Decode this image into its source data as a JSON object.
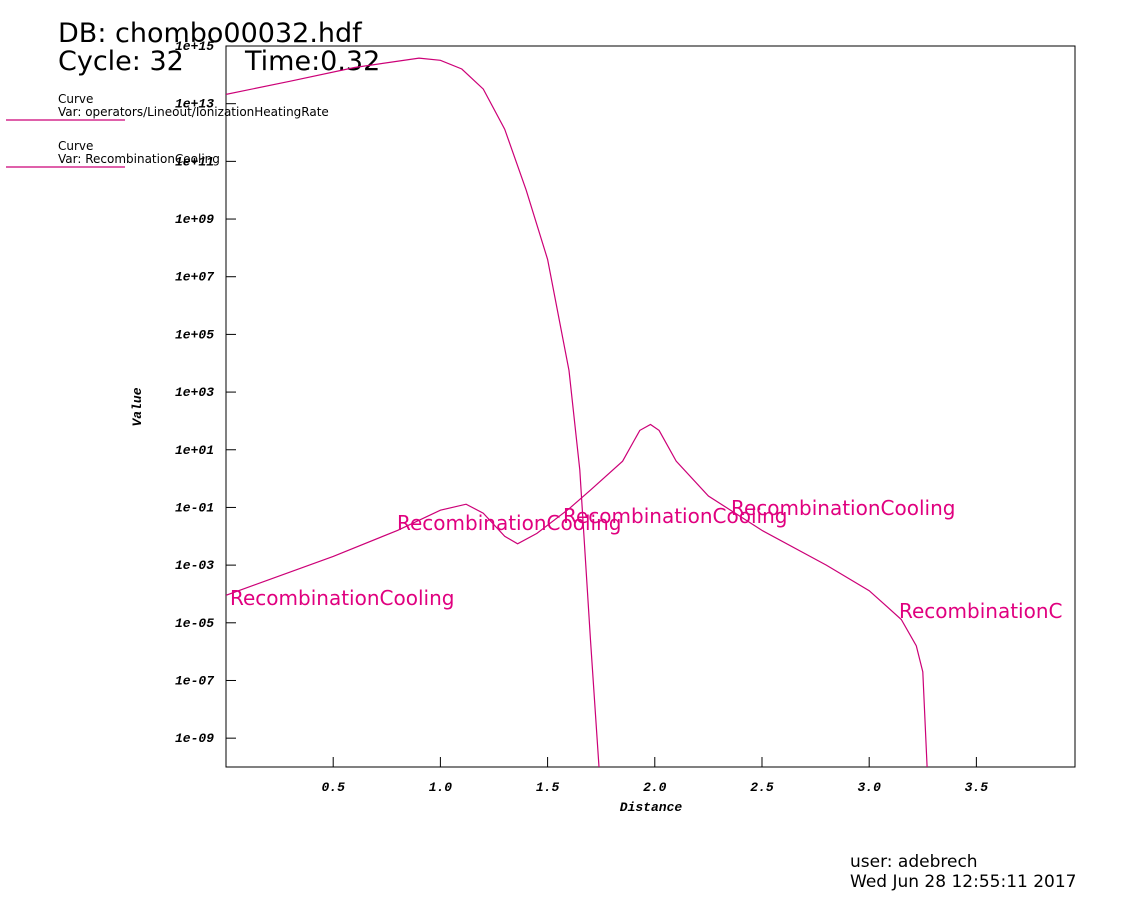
{
  "chart_data": {
    "type": "line",
    "title_lines": [
      "DB: chombo00032.hdf",
      "Cycle: 32",
      "Time:0.32"
    ],
    "x_label": "Distance",
    "y_label": "Value",
    "log_y": true,
    "xlim": [
      0,
      3.96
    ],
    "ylim": [
      1e-10,
      1000000000000000.0
    ],
    "xticks": [
      0.5,
      {
        "value": 1,
        "label": "1.0"
      },
      1.5,
      {
        "value": 2,
        "label": "2.0"
      },
      2.5,
      {
        "value": 3,
        "label": "3.0"
      },
      3.5
    ],
    "yticks": [
      {
        "value": 1000000000000000.0,
        "label": "1e+15"
      },
      {
        "value": 10000000000000.0,
        "label": "1e+13"
      },
      {
        "value": 100000000000.0,
        "label": "1e+11"
      },
      {
        "value": 1000000000.0,
        "label": "1e+09"
      },
      {
        "value": 10000000.0,
        "label": "1e+07"
      },
      {
        "value": 100000.0,
        "label": "1e+05"
      },
      {
        "value": 1000.0,
        "label": "1e+03"
      },
      {
        "value": 10,
        "label": "1e+01"
      },
      {
        "value": 0.1,
        "label": "1e-01"
      },
      {
        "value": 0.001,
        "label": "1e-03"
      },
      {
        "value": 1e-05,
        "label": "1e-05"
      },
      {
        "value": 1e-07,
        "label": "1e-07"
      },
      {
        "value": 1e-09,
        "label": "1e-09"
      }
    ],
    "series": [
      {
        "legend_title": "Curve",
        "name": "Var: operators/Lineout/IonizationHeatingRate",
        "color": "#cc0077",
        "x": [
          0,
          0.3,
          0.6,
          0.9,
          1.0,
          1.1,
          1.2,
          1.3,
          1.4,
          1.5,
          1.6,
          1.65,
          1.7,
          1.74
        ],
        "values": [
          21000000000000.0,
          60000000000000.0,
          180000000000000.0,
          380000000000000.0,
          320000000000000.0,
          160000000000000.0,
          32000000000000.0,
          1300000000000.0,
          10000000000.0,
          40000000.0,
          5600.0,
          2,
          2.5e-06,
          1e-10
        ]
      },
      {
        "legend_title": "Curve",
        "name": "Var: RecombinationCooling",
        "color": "#cc0077",
        "x": [
          0,
          0.5,
          0.8,
          1.0,
          1.12,
          1.2,
          1.3,
          1.36,
          1.45,
          1.6,
          1.7,
          1.85,
          1.93,
          1.98,
          2.02,
          2.1,
          2.25,
          2.5,
          2.8,
          3.0,
          3.15,
          3.22,
          3.25,
          3.27
        ],
        "values": [
          9e-05,
          0.002,
          0.016,
          0.08,
          0.13,
          0.063,
          0.01,
          0.0055,
          0.0126,
          0.09,
          0.4,
          4,
          47,
          75,
          47,
          4,
          0.25,
          0.016,
          0.001,
          0.00013,
          1.3e-05,
          1.6e-06,
          2e-07,
          1e-10
        ]
      }
    ],
    "curve_labels": [
      "RecombinationCooling",
      "RecombinationCooling",
      "RecombinationCooling",
      "RecombinationCooling",
      "RecombinationC"
    ],
    "footer": [
      "user: adebrech",
      "Wed Jun 28 12:55:11 2017"
    ]
  }
}
